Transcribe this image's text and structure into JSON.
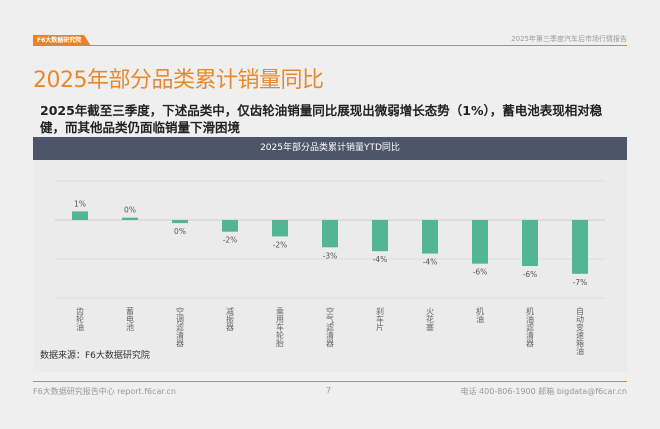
{
  "header": {
    "logo_text": "F6大数据研究院",
    "report_name": "2025年第三季度汽车后市场行情报告"
  },
  "page_title": "2025年部分品类累计销量同比",
  "summary": "2025年截至三季度，下述品类中，仅齿轮油销量同比展现出微弱增长态势（1%），蓄电池表现相对稳健，而其他品类仍面临销量下滑困境",
  "chart_data": {
    "type": "bar",
    "title": "2025年部分品类累计销量YTD同比",
    "categories": [
      "齿轮油",
      "蓄电池",
      "空调滤清器",
      "减振器",
      "乘用车轮胎",
      "空气滤清器",
      "刹车片",
      "火花塞",
      "机油",
      "机油滤清器",
      "自动变速箱油"
    ],
    "values": [
      1.1,
      0.3,
      -0.4,
      -1.5,
      -2.1,
      -3.5,
      -4.0,
      -4.3,
      -5.6,
      -5.9,
      -6.9
    ],
    "data_labels": [
      "1%",
      "0%",
      "0%",
      "-2%",
      "-2%",
      "-3%",
      "-4%",
      "-4%",
      "-6%",
      "-6%",
      "-7%"
    ],
    "unit": "%",
    "ylim": [
      -10,
      5
    ],
    "grid": true,
    "bar_color": "#52b593",
    "xlabel": "",
    "ylabel": ""
  },
  "source": "数据来源：F6大数据研究院",
  "footer": {
    "left": "F6大数据研究报告中心 report.f6car.cn",
    "page": "7",
    "right": "电话 400-806-1900  邮箱 bigdata@f6car.cn"
  },
  "colors": {
    "accent": "#e8832b",
    "chart_header": "#4c5569"
  }
}
